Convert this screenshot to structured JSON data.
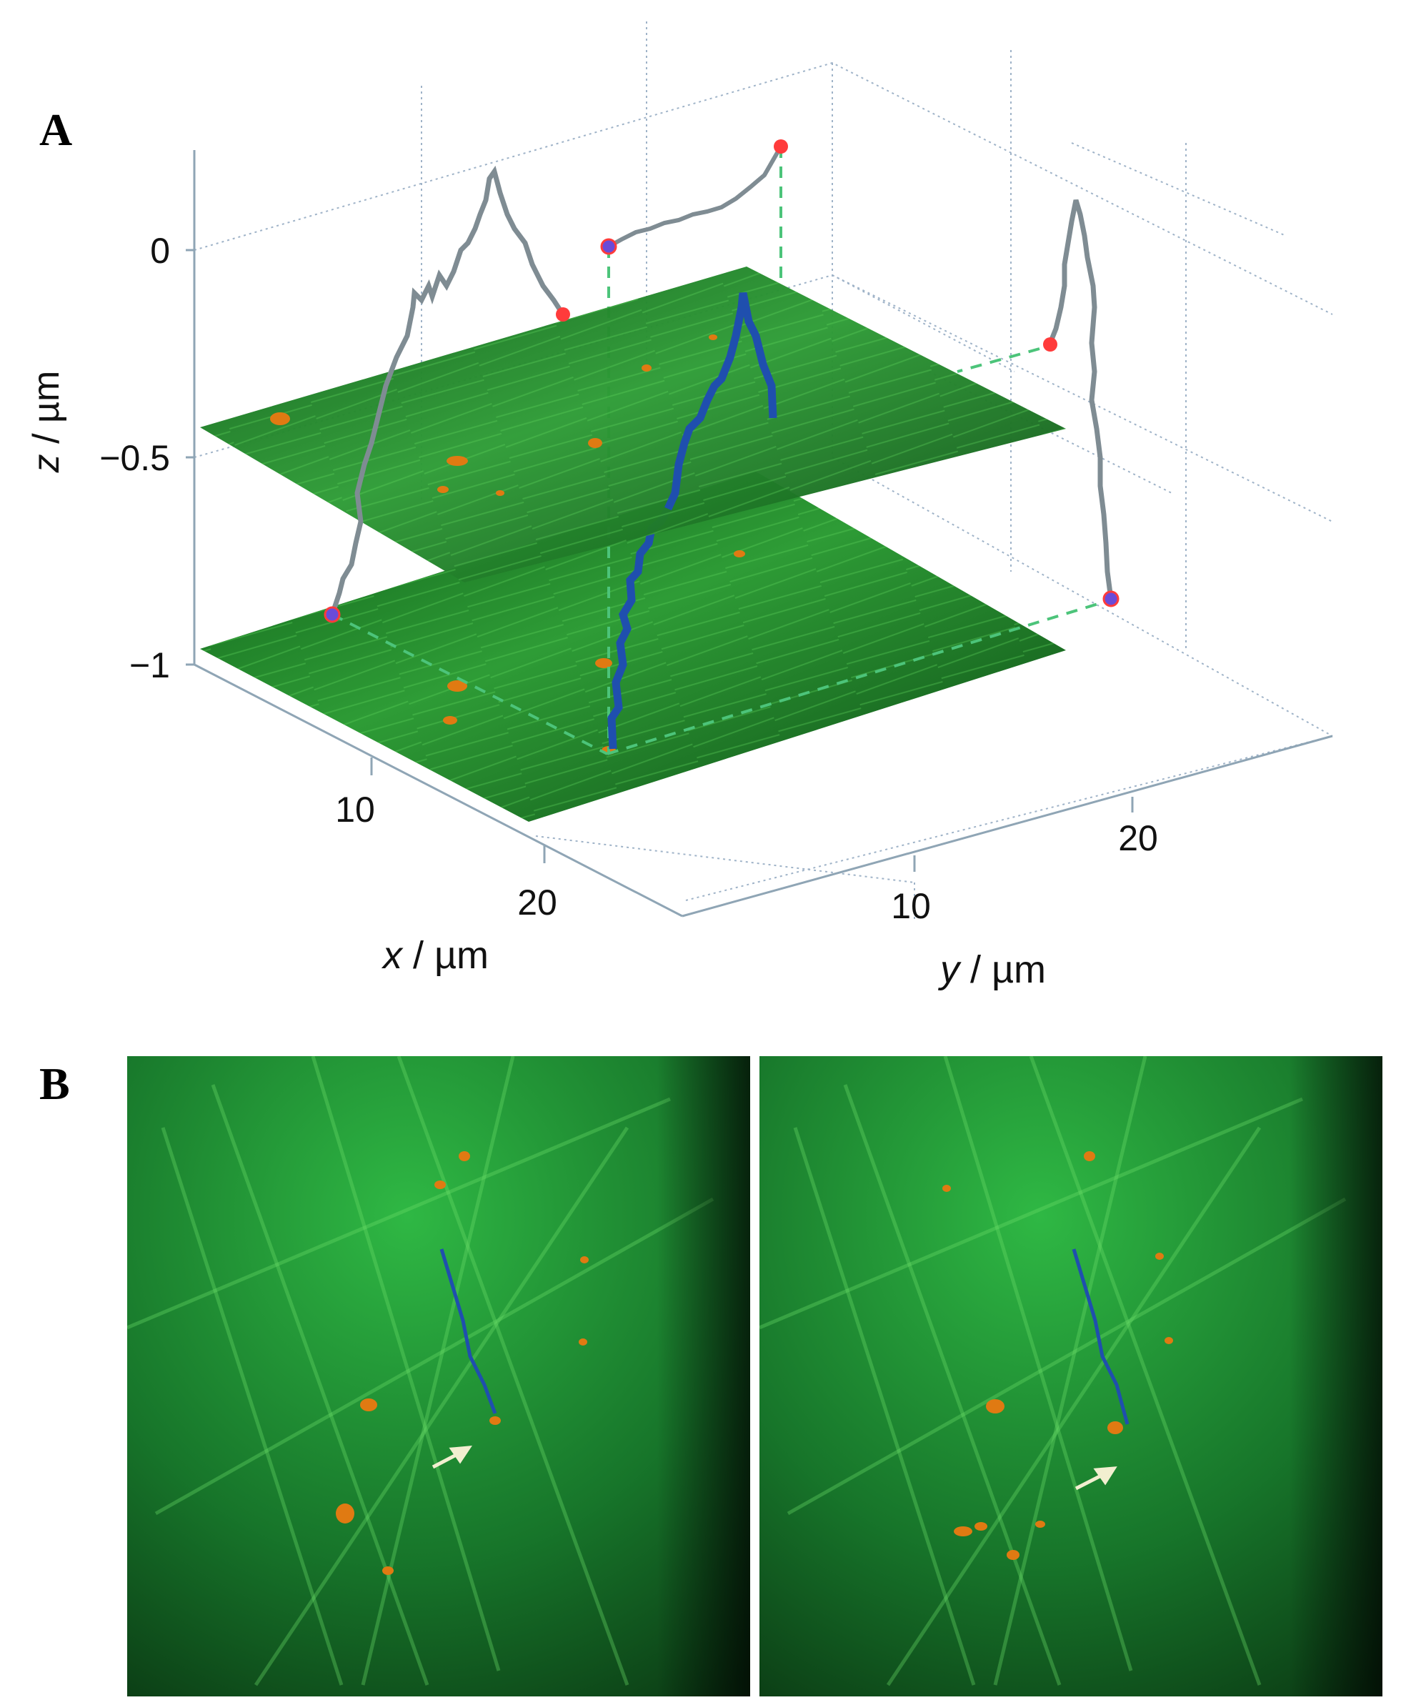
{
  "panel_a": {
    "letter": "A",
    "z_axis": {
      "label_var": "z",
      "label_unit": " / µm",
      "ticks": [
        "0",
        "−0.5",
        "−1"
      ]
    },
    "x_axis": {
      "label_var": "x",
      "label_unit": " / µm",
      "ticks": [
        "10",
        "20"
      ]
    },
    "y_axis": {
      "label_var": "y",
      "label_unit": " / µm",
      "ticks": [
        "10",
        "20"
      ]
    }
  },
  "panel_b": {
    "letter": "B"
  },
  "colors": {
    "actin_green": "#1f8f2a",
    "trajectory_blue": "#1f4fae",
    "projection_gray": "#7f8c93",
    "endpoint_red": "#ff3b3b",
    "endpoint_blue": "#6a4bd8",
    "particle_orange": "#e07a12",
    "grid_dotted": "#9fb3c8",
    "guide_green": "#4cc47a"
  },
  "chart_data": {
    "type": "scatter",
    "title": "",
    "xlabel": "x / µm",
    "ylabel": "y / µm",
    "zlabel": "z / µm",
    "z_ticks": [
      0,
      -0.5,
      -1
    ],
    "x_ticks": [
      10,
      20
    ],
    "y_ticks": [
      10,
      20
    ],
    "zlim": [
      -1,
      0
    ]
  }
}
